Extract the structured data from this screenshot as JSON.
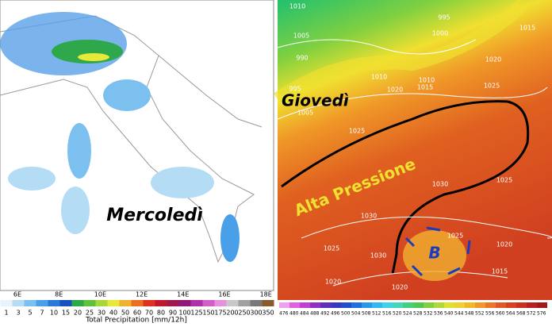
{
  "left_panel": {
    "label": "Mercoledì",
    "longitudes": [
      "6E",
      "8E",
      "10E",
      "12E",
      "14E",
      "16E",
      "18E"
    ],
    "colorbar": {
      "labels": [
        1,
        3,
        5,
        7,
        10,
        15,
        20,
        25,
        30,
        40,
        50,
        60,
        70,
        80,
        90,
        100,
        125,
        150,
        175,
        200,
        250,
        300,
        350
      ],
      "colors": [
        "#e8f4fb",
        "#b4dcf5",
        "#7cc0f0",
        "#4aa0e8",
        "#2a78d8",
        "#1a50c0",
        "#2ea84a",
        "#60c040",
        "#a8d838",
        "#e8e838",
        "#f0b030",
        "#e87020",
        "#e03020",
        "#c01828",
        "#a01850",
        "#901878",
        "#b030a8",
        "#d060c8",
        "#e890e0",
        "#c8c8c8",
        "#a0a0a0",
        "#787878",
        "#8a5a2a"
      ],
      "title": "Total Precipitation [mm/12h]"
    }
  },
  "right_panel": {
    "label": "Giovedì",
    "annotation": "Alta Pressione",
    "low_label": "B",
    "isobar_labels": [
      1010,
      995,
      1005,
      1000,
      990,
      1015,
      1020,
      995,
      1010,
      1010,
      1020,
      1015,
      1025,
      1005,
      1025,
      1030,
      1025,
      1030,
      1025,
      1020,
      1030,
      1025,
      1020,
      1015,
      1020
    ],
    "colorbar": {
      "labels": [
        476,
        480,
        484,
        488,
        492,
        496,
        500,
        504,
        508,
        512,
        516,
        520,
        524,
        528,
        532,
        536,
        540,
        544,
        548,
        552,
        556,
        560,
        564,
        568,
        572,
        576
      ],
      "colors": [
        "#f0a0f0",
        "#e060e0",
        "#c040d0",
        "#9030c0",
        "#6030b8",
        "#3838c0",
        "#2050d0",
        "#2070e0",
        "#2898e8",
        "#30b8f0",
        "#40d0e8",
        "#40d8b8",
        "#40d080",
        "#50c850",
        "#80d040",
        "#b0d838",
        "#e0e030",
        "#f0d030",
        "#f0b828",
        "#f09828",
        "#e87828",
        "#e05828",
        "#d84020",
        "#c83020",
        "#b82020",
        "#a01818"
      ]
    }
  }
}
